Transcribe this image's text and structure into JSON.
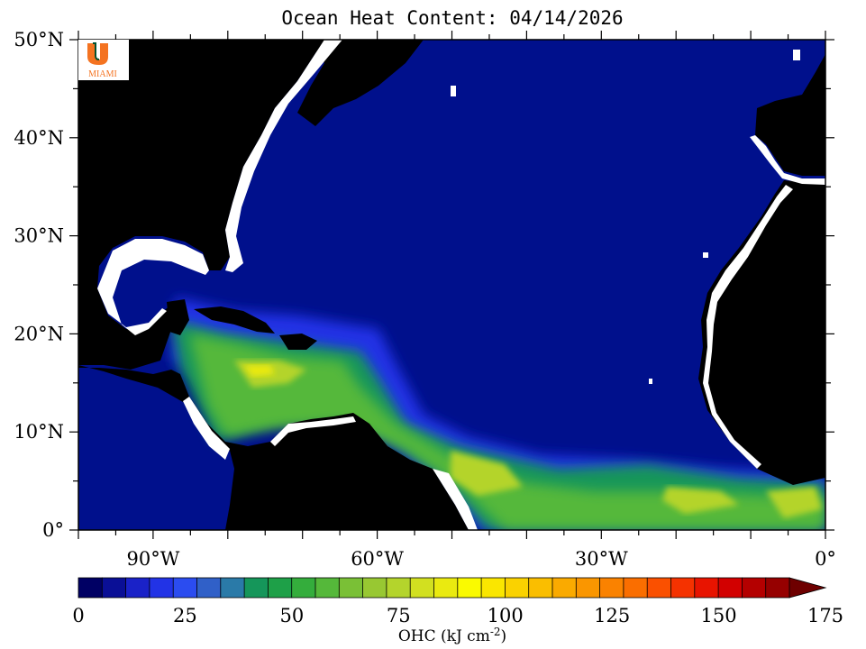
{
  "title": "Ocean Heat Content: 04/14/2026",
  "logo": {
    "text": "MIAMI",
    "colors": {
      "orange": "#f47321",
      "green": "#005030"
    }
  },
  "map": {
    "lon_ticks": [
      {
        "value": -90,
        "label": "90°W"
      },
      {
        "value": -60,
        "label": "60°W"
      },
      {
        "value": -30,
        "label": "30°W"
      },
      {
        "value": 0,
        "label": "0°"
      }
    ],
    "lat_ticks": [
      {
        "value": 0,
        "label": "0°"
      },
      {
        "value": 10,
        "label": "10°N"
      },
      {
        "value": 20,
        "label": "20°N"
      },
      {
        "value": 30,
        "label": "30°N"
      },
      {
        "value": 40,
        "label": "40°N"
      },
      {
        "value": 50,
        "label": "50°N"
      }
    ],
    "lon_range": [
      -100,
      0
    ],
    "lat_range": [
      0,
      50
    ],
    "colors": {
      "ocean": "#00108c",
      "land": "#000000",
      "nodata": "#ffffff"
    }
  },
  "colorbar": {
    "title": "OHC (kJ cm",
    "title_exp": "-2",
    "title_close": ")",
    "labels": [
      {
        "value": 0,
        "label": "0"
      },
      {
        "value": 25,
        "label": "25"
      },
      {
        "value": 50,
        "label": "50"
      },
      {
        "value": 75,
        "label": "75"
      },
      {
        "value": 100,
        "label": "100"
      },
      {
        "value": 125,
        "label": "125"
      },
      {
        "value": 150,
        "label": "150"
      },
      {
        "value": 175,
        "label": "175"
      }
    ],
    "colors": [
      "#000064",
      "#0a0f96",
      "#1a22c8",
      "#2233e6",
      "#2b4cf0",
      "#3060c8",
      "#2a7aa8",
      "#15965a",
      "#1ea048",
      "#34ad3c",
      "#55b83a",
      "#7ac036",
      "#98c832",
      "#b4d42c",
      "#d2e020",
      "#eaea10",
      "#fafa00",
      "#fae600",
      "#fad200",
      "#fabe00",
      "#faaa00",
      "#fa9600",
      "#fa8200",
      "#fa6e00",
      "#fa5000",
      "#f53200",
      "#e81400",
      "#d20000",
      "#b40000",
      "#960000"
    ],
    "arrow_color": "#6e0000"
  }
}
